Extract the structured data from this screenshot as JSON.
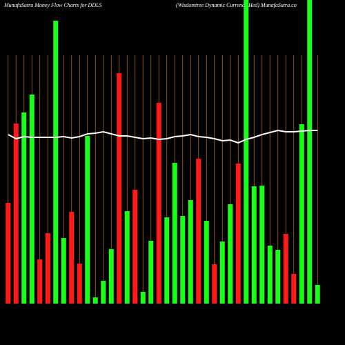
{
  "chart_data": {
    "type": "bar",
    "title": "MunafaSutra  Money Flow  Charts for DDLS",
    "subtitle": "(Wisdomtree   Dynamic Currency Hed) MunafaSutra.co",
    "categories": [
      null,
      null,
      null,
      null,
      null,
      null,
      null,
      null,
      null,
      null,
      null,
      null,
      null,
      null,
      null,
      null,
      null,
      null,
      null,
      null,
      null,
      null,
      null,
      null,
      null,
      null,
      null,
      null,
      null,
      null,
      null,
      null,
      null,
      null,
      null,
      null,
      null,
      null,
      null,
      null
    ],
    "values": [
      146,
      261,
      277,
      303,
      64,
      102,
      410,
      95,
      133,
      58,
      243,
      9,
      33,
      79,
      334,
      134,
      165,
      17,
      91,
      291,
      125,
      204,
      127,
      150,
      210,
      120,
      57,
      90,
      144,
      203,
      440,
      170,
      171,
      84,
      78,
      101,
      43,
      260,
      440,
      27
    ],
    "colors": [
      "#ff1a1a",
      "#ff1a1a",
      "#1aff1a",
      "#1aff1a",
      "#ff1a1a",
      "#ff1a1a",
      "#1aff1a",
      "#1aff1a",
      "#ff1a1a",
      "#ff1a1a",
      "#1aff1a",
      "#1aff1a",
      "#1aff1a",
      "#1aff1a",
      "#ff1a1a",
      "#1aff1a",
      "#ff1a1a",
      "#1aff1a",
      "#1aff1a",
      "#ff1a1a",
      "#1aff1a",
      "#1aff1a",
      "#1aff1a",
      "#1aff1a",
      "#ff1a1a",
      "#1aff1a",
      "#ff1a1a",
      "#1aff1a",
      "#1aff1a",
      "#ff1a1a",
      "#1aff1a",
      "#1aff1a",
      "#1aff1a",
      "#1aff1a",
      "#1aff1a",
      "#ff1a1a",
      "#ff1a1a",
      "#1aff1a",
      "#1aff1a",
      "#1aff1a"
    ],
    "line": {
      "color": "#ffffff",
      "values": [
        245,
        239,
        242,
        241,
        241,
        241,
        241,
        242,
        240,
        242,
        246,
        247,
        249,
        246,
        243,
        243,
        241,
        239,
        240,
        238,
        239,
        242,
        243,
        245,
        242,
        241,
        239,
        236,
        237,
        233,
        238,
        241,
        245,
        248,
        251,
        249,
        249,
        250,
        251,
        251
      ]
    },
    "ylim": [
      0,
      440
    ],
    "grid": true,
    "grid_color": "#b0661a"
  }
}
